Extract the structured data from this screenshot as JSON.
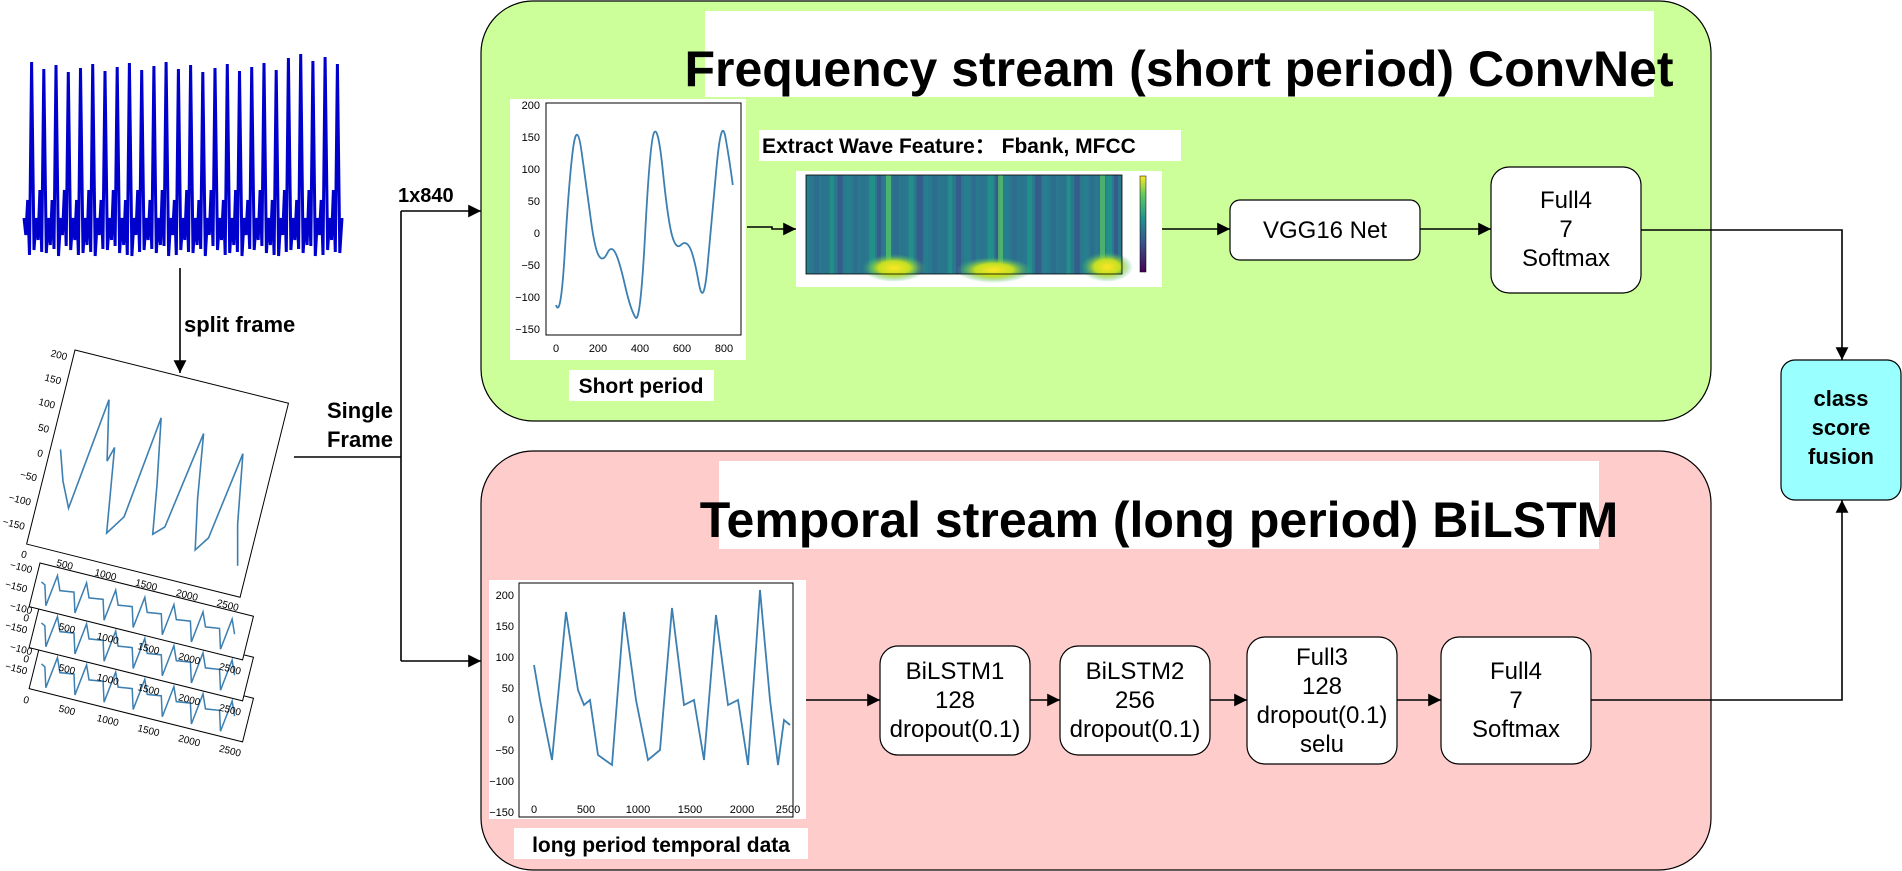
{
  "top_left_label": "split frame",
  "single_frame_label": [
    "Single",
    "Frame"
  ],
  "dim_label": "1x840",
  "frequency_stream": {
    "title": "Frequency stream (short period) ConvNet",
    "feature_label": "Extract Wave Feature： Fbank, MFCC",
    "short_period_label": "Short period",
    "vgg_label": "VGG16 Net",
    "full4_lines": [
      "Full4",
      "7",
      "Softmax"
    ],
    "plot_yticks": [
      "200",
      "150",
      "100",
      "50",
      "0",
      "−50",
      "−100",
      "−150"
    ],
    "plot_xticks": [
      "0",
      "200",
      "400",
      "600",
      "800"
    ]
  },
  "temporal_stream": {
    "title": "Temporal stream (long period) BiLSTM",
    "long_period_label": "long period temporal data",
    "bilstm1_lines": [
      "BiLSTM1",
      "128",
      "dropout(0.1)"
    ],
    "bilstm2_lines": [
      "BiLSTM2",
      "256",
      "dropout(0.1)"
    ],
    "full3_lines": [
      "Full3",
      "128",
      "dropout(0.1)",
      "selu"
    ],
    "full4_lines": [
      "Full4",
      "7",
      "Softmax"
    ],
    "plot_yticks": [
      "200",
      "150",
      "100",
      "50",
      "0",
      "−50",
      "−100",
      "−150"
    ],
    "plot_xticks": [
      "0",
      "500",
      "1000",
      "1500",
      "2000",
      "2500"
    ]
  },
  "fusion_lines": [
    "class",
    "score",
    "fusion"
  ],
  "frame_plot_yticks": [
    "200",
    "150",
    "100",
    "50",
    "0",
    "−50",
    "−100",
    "−150"
  ],
  "frame_plot_xticks": [
    "0",
    "500",
    "1000",
    "1500",
    "2000",
    "2500"
  ],
  "stacked_yticks": [
    "−100",
    "−150"
  ],
  "stacked_xticks": [
    "0",
    "500",
    "1000",
    "1500",
    "2000",
    "2500"
  ],
  "colors": {
    "frequency_bg": "#ccff99",
    "temporal_bg": "#ffcccc",
    "fusion_bg": "#99ffff",
    "signal_blue": "#0000cc",
    "plot_line": "#3c7fb1"
  }
}
